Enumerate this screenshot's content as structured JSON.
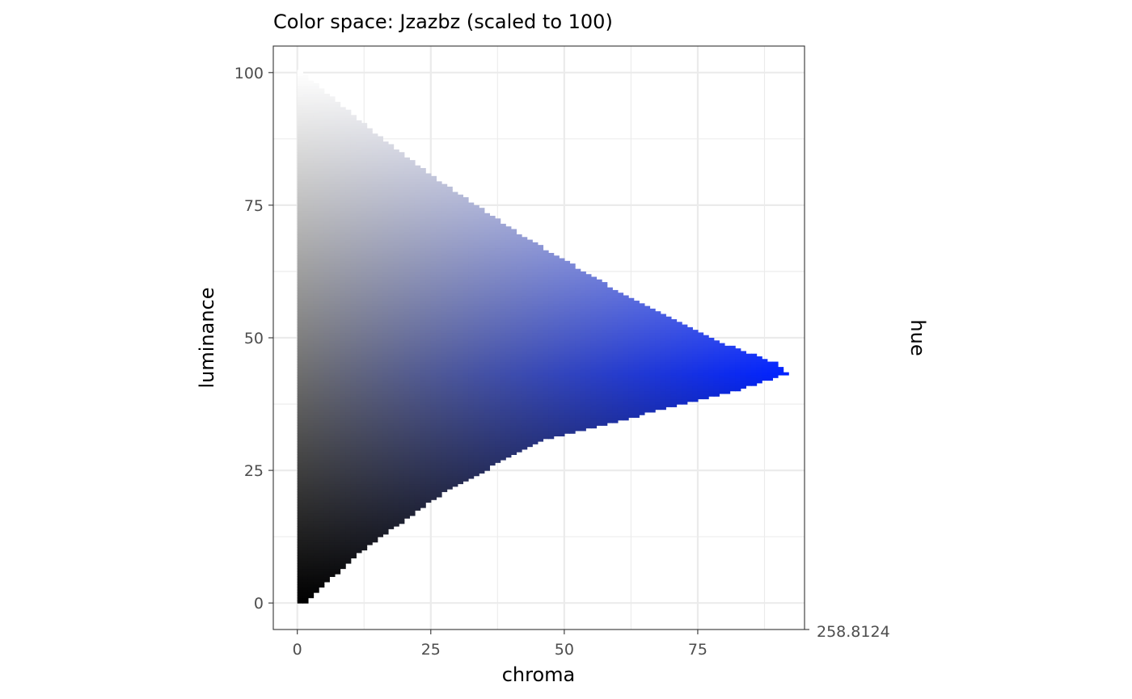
{
  "chart_data": {
    "type": "heatmap",
    "title": "Color space: Jzazbz (scaled to 100)",
    "xlabel": "chroma",
    "ylabel": "luminance",
    "side_axis_label": "hue",
    "hue_value": 258.8124,
    "hue_value_label": "258.8124",
    "xlim": [
      -4.5,
      95
    ],
    "ylim": [
      -5,
      105
    ],
    "x_ticks": [
      0,
      25,
      50,
      75
    ],
    "x_tick_labels": [
      "0",
      "25",
      "50",
      "75"
    ],
    "y_ticks": [
      0,
      25,
      50,
      75,
      100
    ],
    "y_tick_labels": [
      "0",
      "25",
      "50",
      "75",
      "100"
    ],
    "grid": true,
    "gamut_boundary": {
      "luminance": [
        0,
        10,
        20,
        30,
        40,
        43,
        45,
        50,
        60,
        70,
        80,
        90,
        100
      ],
      "max_chroma": [
        1,
        12,
        26,
        44,
        82,
        91,
        89,
        76,
        57,
        40,
        25,
        12,
        0
      ]
    },
    "color_stops": {
      "white_top": "#ffffff",
      "black_bottom": "#000000",
      "blue_peak": "#0022ff"
    }
  }
}
